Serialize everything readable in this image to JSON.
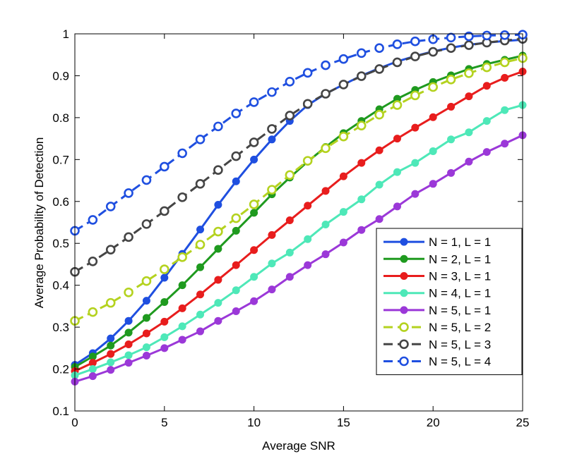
{
  "chart_data": {
    "type": "line",
    "title": "",
    "xlabel": "Average SNR",
    "ylabel": "Average Probability of Detection",
    "xlim": [
      0,
      25
    ],
    "ylim": [
      0.1,
      1
    ],
    "xticks": [
      0,
      5,
      10,
      15,
      20,
      25
    ],
    "xtick_labels": [
      "0",
      "5",
      "10",
      "15",
      "20",
      "25"
    ],
    "yticks": [
      0.1,
      0.2,
      0.3,
      0.4,
      0.5,
      0.6,
      0.7,
      0.8,
      0.9,
      1
    ],
    "ytick_labels": [
      "0.1",
      "0.2",
      "0.3",
      "0.4",
      "0.5",
      "0.6",
      "0.7",
      "0.8",
      "0.9",
      "1"
    ],
    "grid": false,
    "legend_position": "bottom-right",
    "x": [
      0,
      1,
      2,
      3,
      4,
      5,
      6,
      7,
      8,
      9,
      10,
      11,
      12,
      13,
      14,
      15,
      16,
      17,
      18,
      19,
      20,
      21,
      22,
      23,
      24,
      25
    ],
    "series": [
      {
        "name": "N = 1, L = 1",
        "color": "#1f4fe0",
        "style": "solid",
        "marker": "filled",
        "values": [
          0.21,
          0.238,
          0.273,
          0.315,
          0.363,
          0.418,
          0.475,
          0.533,
          0.592,
          0.648,
          0.7,
          0.748,
          0.792,
          0.83,
          0.857,
          0.879,
          0.9,
          0.918,
          0.934,
          0.947,
          0.958,
          0.967,
          0.974,
          0.979,
          0.983,
          0.986
        ]
      },
      {
        "name": "N = 2, L = 1",
        "color": "#1f9a1f",
        "style": "solid",
        "marker": "filled",
        "values": [
          0.205,
          0.23,
          0.256,
          0.287,
          0.322,
          0.36,
          0.4,
          0.443,
          0.487,
          0.53,
          0.573,
          0.617,
          0.657,
          0.695,
          0.73,
          0.763,
          0.792,
          0.82,
          0.845,
          0.866,
          0.885,
          0.901,
          0.916,
          0.928,
          0.938,
          0.948
        ]
      },
      {
        "name": "N = 3, L = 1",
        "color": "#e81d1d",
        "style": "solid",
        "marker": "filled",
        "values": [
          0.195,
          0.215,
          0.236,
          0.259,
          0.285,
          0.313,
          0.345,
          0.378,
          0.413,
          0.448,
          0.484,
          0.52,
          0.555,
          0.59,
          0.625,
          0.66,
          0.692,
          0.722,
          0.75,
          0.776,
          0.801,
          0.826,
          0.851,
          0.876,
          0.895,
          0.91
        ]
      },
      {
        "name": "N = 4, L = 1",
        "color": "#4ee8b8",
        "style": "solid",
        "marker": "filled",
        "values": [
          0.185,
          0.2,
          0.216,
          0.233,
          0.252,
          0.276,
          0.302,
          0.33,
          0.358,
          0.388,
          0.42,
          0.452,
          0.478,
          0.51,
          0.545,
          0.575,
          0.605,
          0.64,
          0.67,
          0.692,
          0.72,
          0.748,
          0.765,
          0.792,
          0.818,
          0.83
        ]
      },
      {
        "name": "N = 5, L = 1",
        "color": "#9b38d8",
        "style": "solid",
        "marker": "filled",
        "values": [
          0.17,
          0.183,
          0.198,
          0.215,
          0.232,
          0.25,
          0.27,
          0.29,
          0.315,
          0.338,
          0.362,
          0.39,
          0.42,
          0.448,
          0.474,
          0.502,
          0.532,
          0.558,
          0.588,
          0.618,
          0.642,
          0.668,
          0.695,
          0.718,
          0.738,
          0.758
        ]
      },
      {
        "name": "N = 5, L = 2",
        "color": "#b4d21f",
        "style": "dashed",
        "marker": "open",
        "values": [
          0.315,
          0.336,
          0.358,
          0.383,
          0.41,
          0.438,
          0.467,
          0.497,
          0.528,
          0.56,
          0.593,
          0.628,
          0.663,
          0.697,
          0.727,
          0.755,
          0.781,
          0.807,
          0.83,
          0.853,
          0.873,
          0.891,
          0.906,
          0.92,
          0.932,
          0.942
        ]
      },
      {
        "name": "N = 5, L = 3",
        "color": "#454545",
        "style": "dashed",
        "marker": "open",
        "values": [
          0.432,
          0.457,
          0.485,
          0.515,
          0.546,
          0.577,
          0.61,
          0.642,
          0.675,
          0.708,
          0.741,
          0.773,
          0.805,
          0.833,
          0.857,
          0.879,
          0.899,
          0.916,
          0.932,
          0.946,
          0.957,
          0.966,
          0.973,
          0.979,
          0.984,
          0.988
        ]
      },
      {
        "name": "N = 5, L = 4",
        "color": "#1f4fe0",
        "style": "dashed",
        "marker": "open",
        "values": [
          0.53,
          0.556,
          0.588,
          0.62,
          0.651,
          0.683,
          0.715,
          0.748,
          0.779,
          0.81,
          0.837,
          0.861,
          0.886,
          0.907,
          0.925,
          0.94,
          0.954,
          0.966,
          0.975,
          0.982,
          0.987,
          0.991,
          0.994,
          0.996,
          0.997,
          0.998
        ]
      }
    ]
  }
}
